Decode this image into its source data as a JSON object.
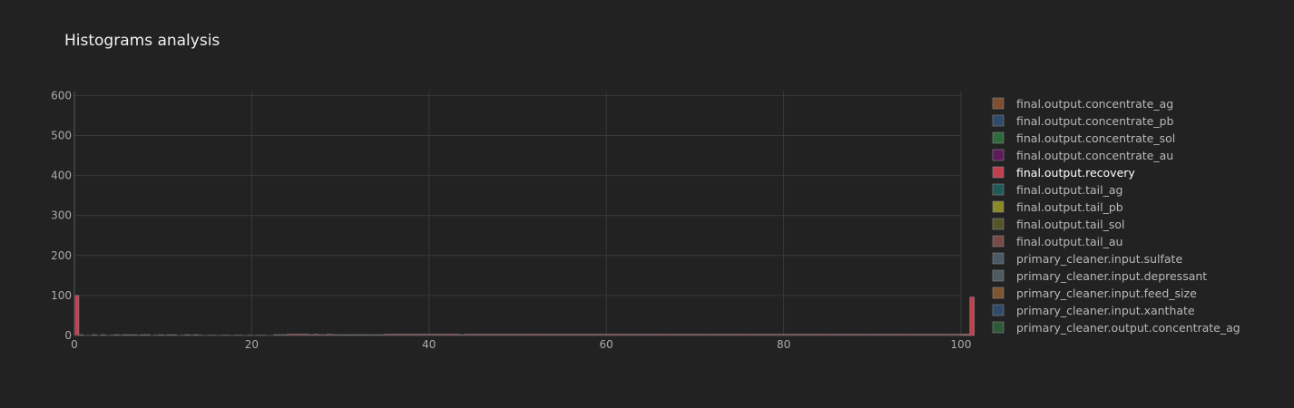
{
  "chart_data": {
    "type": "bar",
    "title": "Histograms analysis",
    "xlabel": "",
    "ylabel": "",
    "xlim": [
      0,
      100
    ],
    "ylim": [
      0,
      610
    ],
    "xticks": [
      0,
      20,
      40,
      60,
      80,
      100
    ],
    "yticks": [
      0,
      100,
      200,
      300,
      400,
      500,
      600
    ],
    "grid": true,
    "bin_width": 0.5,
    "bin_start": 0,
    "legend_position": "right",
    "series": [
      {
        "name": "final.output.recovery",
        "color": "#c0404e",
        "values": [
          100,
          2,
          0,
          0,
          2,
          0,
          2,
          0,
          1,
          2,
          1,
          2,
          2,
          2,
          1,
          2,
          2,
          0,
          1,
          2,
          1,
          2,
          2,
          0,
          1,
          2,
          1,
          2,
          1,
          0,
          1,
          1,
          0,
          1,
          1,
          0,
          1,
          1,
          0,
          1,
          0,
          1,
          1,
          0,
          0,
          2,
          2,
          2,
          3,
          3,
          3,
          3,
          3,
          2,
          3,
          2,
          2,
          3,
          2,
          2,
          2,
          2,
          2,
          2,
          2,
          2,
          2,
          2,
          2,
          2,
          3,
          3,
          3,
          3,
          3,
          3,
          3,
          3,
          3,
          3,
          3,
          3,
          3,
          3,
          3,
          3,
          3,
          2,
          3,
          3,
          3,
          3,
          3,
          3,
          3,
          3,
          3,
          3,
          3,
          3,
          3,
          3,
          3,
          3,
          3,
          3,
          3,
          3,
          3,
          3,
          3,
          3,
          3,
          3,
          3,
          3,
          3,
          3,
          3,
          3,
          3,
          3,
          3,
          3,
          3,
          3,
          3,
          3,
          3,
          3,
          3,
          3,
          3,
          3,
          3,
          3,
          3,
          3,
          3,
          3,
          3,
          3,
          3,
          3,
          3,
          3,
          3,
          3,
          3,
          3,
          3,
          3,
          3,
          3,
          3,
          3,
          3,
          3,
          3,
          3,
          3,
          3,
          3,
          3,
          3,
          3,
          3,
          3,
          3,
          3,
          3,
          3,
          3,
          3,
          3,
          3,
          3,
          3,
          3,
          3,
          3,
          3,
          3,
          3,
          3,
          3,
          3,
          3,
          3,
          3,
          3,
          3,
          3,
          3,
          3,
          3,
          3,
          3,
          3,
          3,
          3,
          3,
          96
        ]
      }
    ],
    "legend": [
      {
        "label": "final.output.concentrate_ag",
        "color": "#7f4f2f",
        "active": false
      },
      {
        "label": "final.output.concentrate_pb",
        "color": "#2f4a6a",
        "active": false
      },
      {
        "label": "final.output.concentrate_sol",
        "color": "#2e6a3a",
        "active": false
      },
      {
        "label": "final.output.concentrate_au",
        "color": "#5e1a5a",
        "active": false
      },
      {
        "label": "final.output.recovery",
        "color": "#c0404e",
        "active": true
      },
      {
        "label": "final.output.tail_ag",
        "color": "#1f5a58",
        "active": false
      },
      {
        "label": "final.output.tail_pb",
        "color": "#8a8a28",
        "active": false
      },
      {
        "label": "final.output.tail_sol",
        "color": "#555528",
        "active": false
      },
      {
        "label": "final.output.tail_au",
        "color": "#7a4a48",
        "active": false
      },
      {
        "label": "primary_cleaner.input.sulfate",
        "color": "#4a5a66",
        "active": false
      },
      {
        "label": "primary_cleaner.input.depressant",
        "color": "#4f5a60",
        "active": false
      },
      {
        "label": "primary_cleaner.input.feed_size",
        "color": "#7f5530",
        "active": false
      },
      {
        "label": "primary_cleaner.input.xanthate",
        "color": "#2f4a6a",
        "active": false
      },
      {
        "label": "primary_cleaner.output.concentrate_ag",
        "color": "#2e5a38",
        "active": false
      }
    ]
  }
}
